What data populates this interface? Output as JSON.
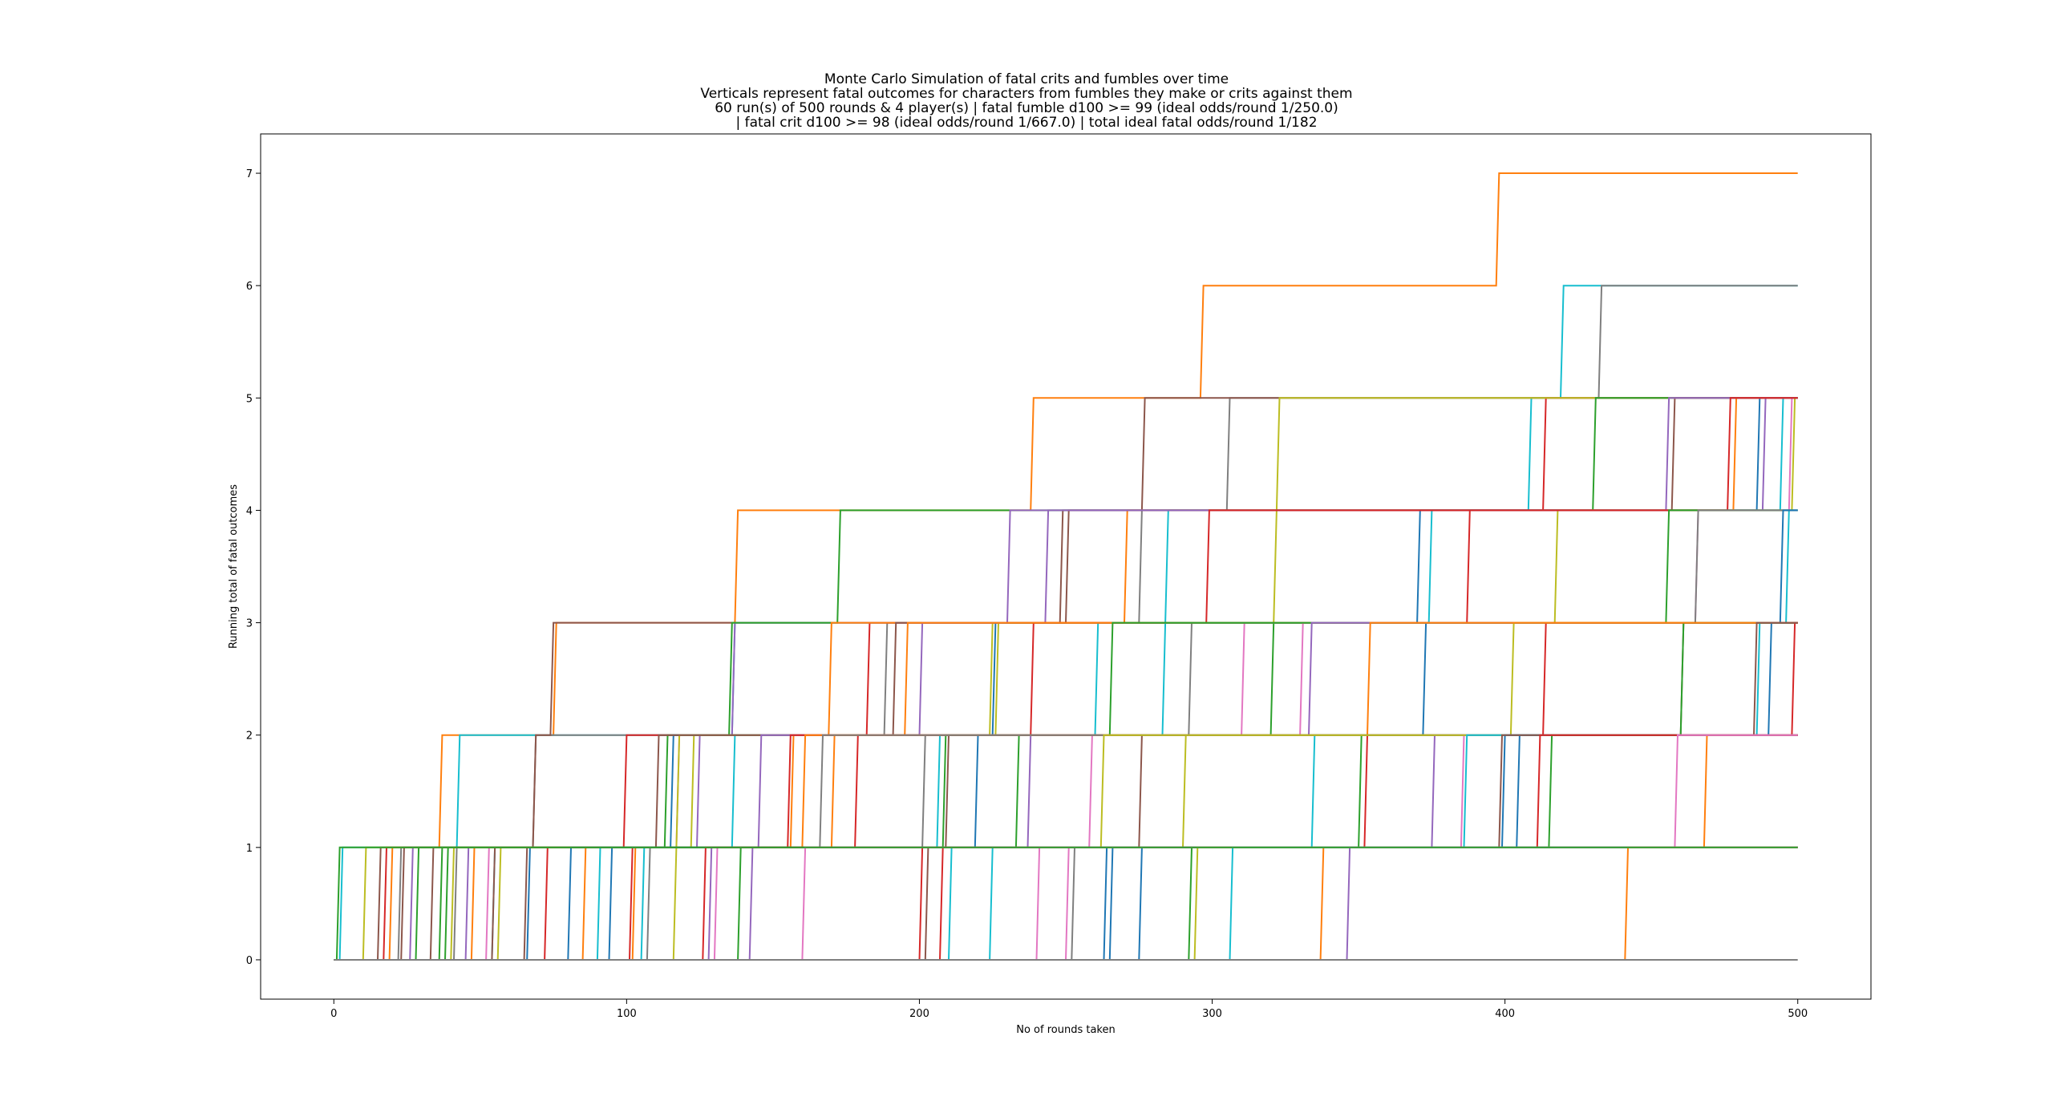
{
  "chart_data": {
    "type": "line",
    "title_lines": [
      "Monte Carlo Simulation of fatal crits and fumbles over time",
      "Verticals represent fatal outcomes for characters from fumbles they make or crits against them",
      "60 run(s) of 500 rounds & 4 player(s) | fatal fumble d100 >= 99 (ideal odds/round 1/250.0)",
      "| fatal crit d100 >= 98 (ideal odds/round 1/667.0) | total ideal fatal odds/round 1/182"
    ],
    "xlabel": "No of rounds taken",
    "ylabel": "Running total of fatal outcomes",
    "xlim": [
      -25,
      525
    ],
    "ylim": [
      -0.35,
      7.35
    ],
    "xticks": [
      0,
      100,
      200,
      300,
      400,
      500
    ],
    "yticks": [
      0,
      1,
      2,
      3,
      4,
      5,
      6,
      7
    ],
    "grid": false,
    "x_end": 500,
    "palette": [
      "#1f77b4",
      "#ff7f0e",
      "#2ca02c",
      "#d62728",
      "#9467bd",
      "#8c564b",
      "#e377c2",
      "#7f7f7f",
      "#bcbd22",
      "#17becf"
    ],
    "series": [
      {
        "color": "#ff7f0e",
        "steps": [
          19,
          36,
          75,
          137,
          238,
          296,
          397
        ]
      },
      {
        "color": "#17becf",
        "steps": [
          2,
          42,
          136,
          284,
          408,
          419
        ]
      },
      {
        "color": "#7f7f7f",
        "steps": [
          22,
          68,
          188,
          275,
          305,
          432
        ]
      },
      {
        "color": "#8c564b",
        "steps": [
          15,
          68,
          74,
          248,
          276
        ]
      },
      {
        "color": "#d62728",
        "steps": [
          17,
          99,
          182,
          387,
          413
        ]
      },
      {
        "color": "#bcbd22",
        "steps": [
          40,
          122,
          224,
          321,
          322
        ]
      },
      {
        "color": "#9467bd",
        "steps": [
          26,
          124,
          136,
          243,
          488
        ]
      },
      {
        "color": "#e377c2",
        "steps": [
          52,
          117,
          310,
          465,
          497
        ]
      },
      {
        "color": "#2ca02c",
        "steps": [
          28,
          113,
          135,
          172,
          430
        ]
      },
      {
        "color": "#17becf",
        "steps": [
          54,
          136,
          260,
          374,
          494
        ]
      },
      {
        "color": "#1f77b4",
        "steps": [
          94,
          115,
          225,
          370,
          486
        ]
      },
      {
        "color": "#bcbd22",
        "steps": [
          56,
          117,
          226,
          417,
          498
        ]
      },
      {
        "color": "#ff7f0e",
        "steps": [
          102,
          156,
          169,
          270,
          478
        ]
      },
      {
        "color": "#8c564b",
        "steps": [
          33,
          110,
          191,
          250,
          457
        ]
      },
      {
        "color": "#9467bd",
        "steps": [
          45,
          145,
          200,
          230,
          455
        ]
      },
      {
        "color": "#d62728",
        "steps": [
          72,
          155,
          238,
          298,
          476
        ]
      },
      {
        "color": "#2ca02c",
        "steps": [
          36,
          233,
          320,
          455
        ]
      },
      {
        "color": "#17becf",
        "steps": [
          105,
          206,
          283,
          496
        ]
      },
      {
        "color": "#7f7f7f",
        "steps": [
          41,
          201,
          292,
          465
        ]
      },
      {
        "color": "#1f77b4",
        "steps": [
          66,
          219,
          372,
          494
        ]
      },
      {
        "color": "#e377c2",
        "steps": [
          130,
          258,
          330
        ]
      },
      {
        "color": "#ff7f0e",
        "steps": [
          47,
          170,
          195
        ]
      },
      {
        "color": "#2ca02c",
        "steps": [
          38,
          208,
          265
        ]
      },
      {
        "color": "#9467bd",
        "steps": [
          128,
          237,
          333
        ]
      },
      {
        "color": "#d62728",
        "steps": [
          101,
          178,
          413
        ]
      },
      {
        "color": "#bcbd22",
        "steps": [
          116,
          290,
          402
        ]
      },
      {
        "color": "#8c564b",
        "steps": [
          54,
          209,
          460
        ]
      },
      {
        "color": "#17becf",
        "steps": [
          210,
          334,
          486
        ]
      },
      {
        "color": "#2ca02c",
        "steps": [
          138,
          350,
          460
        ]
      },
      {
        "color": "#1f77b4",
        "steps": [
          263,
          404,
          490
        ]
      },
      {
        "color": "#ff7f0e",
        "steps": [
          85,
          160,
          353
        ]
      },
      {
        "color": "#d62728",
        "steps": [
          200,
          352,
          498
        ]
      },
      {
        "color": "#8c564b",
        "steps": [
          65,
          275,
          485
        ]
      },
      {
        "color": "#e377c2",
        "steps": [
          250,
          385
        ]
      },
      {
        "color": "#9467bd",
        "steps": [
          142,
          375
        ]
      },
      {
        "color": "#7f7f7f",
        "steps": [
          107,
          166
        ]
      },
      {
        "color": "#bcbd22",
        "steps": [
          10,
          262
        ]
      },
      {
        "color": "#17becf",
        "steps": [
          90,
          386
        ]
      },
      {
        "color": "#1f77b4",
        "steps": [
          80,
          399
        ]
      },
      {
        "color": "#ff7f0e",
        "steps": [
          337,
          468
        ]
      },
      {
        "color": "#2ca02c",
        "steps": [
          292,
          415
        ]
      },
      {
        "color": "#8c564b",
        "steps": [
          23,
          398
        ]
      },
      {
        "color": "#d62728",
        "steps": [
          126,
          411
        ]
      },
      {
        "color": "#e377c2",
        "steps": [
          240,
          458
        ]
      },
      {
        "color": "#17becf",
        "steps": [
          224
        ]
      },
      {
        "color": "#1f77b4",
        "steps": [
          265
        ]
      },
      {
        "color": "#1f77b4",
        "steps": [
          275
        ]
      },
      {
        "color": "#d62728",
        "steps": [
          207
        ]
      },
      {
        "color": "#8c564b",
        "steps": [
          202
        ]
      },
      {
        "color": "#7f7f7f",
        "steps": [
          252
        ]
      },
      {
        "color": "#bcbd22",
        "steps": [
          294
        ]
      },
      {
        "color": "#17becf",
        "steps": [
          306
        ]
      },
      {
        "color": "#9467bd",
        "steps": [
          346
        ]
      },
      {
        "color": "#ff7f0e",
        "steps": [
          441
        ]
      },
      {
        "color": "#e377c2",
        "steps": [
          160
        ]
      },
      {
        "color": "#2ca02c",
        "steps": [
          1
        ]
      },
      {
        "color": "#7f7f7f",
        "steps": []
      }
    ]
  }
}
